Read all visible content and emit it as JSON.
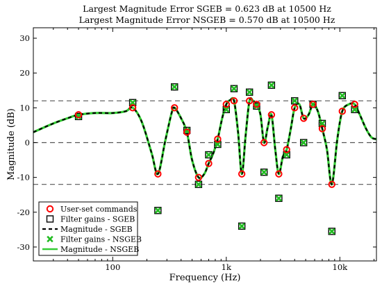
{
  "chart_data": {
    "type": "line",
    "title_lines": [
      "Largest Magnitude Error SGEB = 0.623 dB at 10500 Hz",
      "Largest Magnitude Error NSGEB = 0.570 dB at 10500 Hz"
    ],
    "xlabel": "Frequency (Hz)",
    "ylabel": "Magnitude (dB)",
    "x_scale": "log",
    "xlim": [
      20,
      21000
    ],
    "ylim": [
      -34,
      33
    ],
    "x_ticks": [
      {
        "value": 100,
        "label": "100"
      },
      {
        "value": 1000,
        "label": "1k"
      },
      {
        "value": 10000,
        "label": "10k"
      }
    ],
    "y_ticks": [
      {
        "value": 30,
        "label": "30"
      },
      {
        "value": 20,
        "label": "20"
      },
      {
        "value": 10,
        "label": "10"
      },
      {
        "value": 0,
        "label": "0"
      },
      {
        "value": -10,
        "label": "-10"
      },
      {
        "value": -20,
        "label": "-20"
      },
      {
        "value": -30,
        "label": "-30"
      }
    ],
    "reference_lines_dB": [
      12,
      0,
      -12
    ],
    "legend_position": "bottom-left",
    "legend": [
      {
        "label": "User-set commands",
        "marker": "circle",
        "color": "#ff0000"
      },
      {
        "label": "Filter gains - SGEB",
        "marker": "square",
        "color": "#000000"
      },
      {
        "label": "Magnitude - SGEB",
        "marker": "dashed-line",
        "color": "#000000"
      },
      {
        "label": "Filter gains - NSGEB",
        "marker": "x",
        "color": "#22bb22"
      },
      {
        "label": "Magnitude - NSGEB",
        "marker": "solid-line",
        "color": "#33cc33"
      }
    ],
    "center_frequencies_hz": [
      50,
      150,
      250,
      350,
      450,
      570,
      700,
      840,
      1000,
      1170,
      1370,
      1600,
      1850,
      2150,
      2500,
      2900,
      3400,
      4000,
      4800,
      5800,
      7000,
      8500,
      10500,
      13500
    ],
    "user_set_commands_dB": [
      8,
      10,
      -9,
      10,
      3,
      -10,
      -6,
      1,
      11,
      12,
      -9,
      12,
      11,
      0,
      8,
      -9,
      -2,
      10,
      7,
      11,
      4,
      -12,
      9,
      11
    ],
    "filter_gains_sgeb_dB": [
      7.5,
      11.5,
      -19.5,
      16,
      3.5,
      -12,
      -3.5,
      -0.5,
      9.5,
      15.5,
      -24,
      14.5,
      10.5,
      -8.5,
      16.5,
      -16,
      -3.5,
      12,
      0,
      11,
      5.5,
      -25.5,
      13.5,
      9.5
    ],
    "filter_gains_nsgeb_dB": [
      7.5,
      11.5,
      -19.5,
      16,
      3.5,
      -12,
      -3.5,
      -0.5,
      9.5,
      15.5,
      -24,
      14.5,
      10.5,
      -8.5,
      16.5,
      -16,
      -3.5,
      12,
      0,
      11,
      5.5,
      -25.5,
      13.5,
      9.5
    ],
    "magnitude_response": {
      "frequency_hz": [
        20,
        30,
        40,
        50,
        70,
        100,
        130,
        150,
        180,
        220,
        250,
        290,
        330,
        350,
        400,
        450,
        500,
        570,
        640,
        700,
        770,
        840,
        920,
        1000,
        1080,
        1170,
        1270,
        1370,
        1480,
        1600,
        1720,
        1850,
        2000,
        2150,
        2320,
        2500,
        2700,
        2900,
        3150,
        3400,
        3700,
        4000,
        4400,
        4800,
        5300,
        5800,
        6400,
        7000,
        7700,
        8500,
        9500,
        10500,
        12000,
        13500,
        15000,
        17000,
        19000,
        21000
      ],
      "sgeb_dB": [
        3,
        5.5,
        7,
        8,
        8.5,
        8.5,
        9,
        10,
        6,
        -3,
        -9,
        0.5,
        8.5,
        10,
        7,
        3,
        -5,
        -10,
        -9,
        -6,
        -3,
        1,
        7,
        11,
        12.2,
        12,
        3,
        -9,
        2,
        12,
        12,
        11,
        8,
        0,
        4.5,
        8,
        -2,
        -9,
        -4,
        -2,
        4,
        10,
        11,
        7,
        8,
        11,
        9,
        4,
        -2,
        -12,
        1,
        9,
        11,
        11,
        8,
        4,
        1.5,
        1
      ],
      "nsgeb_dB": [
        3,
        5.5,
        7,
        8,
        8.5,
        8.5,
        9,
        10,
        6,
        -3,
        -9,
        0.5,
        8.5,
        10,
        7,
        3,
        -5,
        -10,
        -9,
        -6,
        -3,
        1,
        7,
        11,
        12.2,
        12,
        3,
        -9,
        2,
        12,
        12,
        11,
        8,
        0,
        4.5,
        8,
        -2,
        -9,
        -4,
        -2,
        4,
        10,
        11,
        7,
        8,
        11,
        9,
        4,
        -2,
        -12,
        1,
        9,
        11,
        11,
        8,
        4,
        1.5,
        1
      ]
    }
  }
}
